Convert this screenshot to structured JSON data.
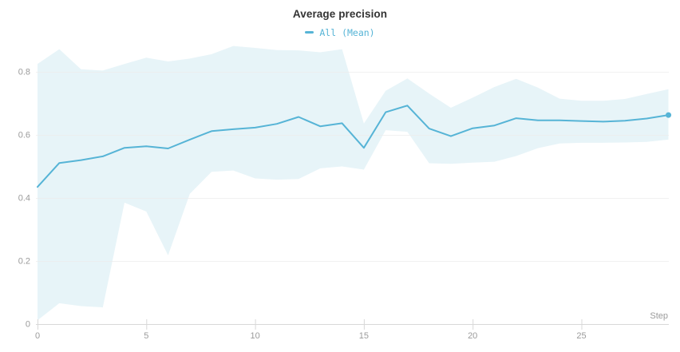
{
  "panel": {
    "title": "Average precision"
  },
  "legend": {
    "series_label": "All (Mean)"
  },
  "axis": {
    "x_label": "Step"
  },
  "colors": {
    "accent_line": "#56b4d6",
    "band_fill": "#e7f4f8",
    "title_text": "#333333",
    "axis_text": "#9b9b9b",
    "grid_line": "#ececec",
    "axis_line": "#d8d8d8"
  },
  "chart_data": {
    "type": "line",
    "title": "Average precision",
    "xlabel": "Step",
    "ylabel": "",
    "legend_position": "top-center",
    "grid": "horizontal",
    "xlim": [
      0,
      29.5
    ],
    "ylim": [
      0,
      0.89
    ],
    "x_ticks": [
      0,
      5,
      10,
      15,
      20,
      25
    ],
    "y_ticks": [
      0,
      0.2,
      0.4,
      0.6,
      0.8
    ],
    "x": [
      0,
      1,
      2,
      3,
      4,
      5,
      6,
      7,
      8,
      9,
      10,
      11,
      12,
      13,
      14,
      15,
      16,
      17,
      18,
      19,
      20,
      21,
      22,
      23,
      24,
      25,
      26,
      27,
      28,
      29
    ],
    "series": [
      {
        "name": "All (Mean)",
        "values": [
          0.435,
          0.511,
          0.52,
          0.532,
          0.559,
          0.564,
          0.557,
          0.585,
          0.612,
          0.618,
          0.623,
          0.635,
          0.657,
          0.627,
          0.637,
          0.559,
          0.672,
          0.693,
          0.62,
          0.596,
          0.621,
          0.63,
          0.653,
          0.646,
          0.646,
          0.644,
          0.642,
          0.645,
          0.652,
          0.663
        ],
        "band_upper": [
          0.825,
          0.872,
          0.808,
          0.804,
          0.825,
          0.845,
          0.833,
          0.842,
          0.856,
          0.882,
          0.876,
          0.869,
          0.868,
          0.862,
          0.872,
          0.636,
          0.74,
          0.779,
          0.731,
          0.686,
          0.718,
          0.752,
          0.778,
          0.75,
          0.715,
          0.708,
          0.708,
          0.714,
          0.73,
          0.745
        ],
        "band_lower": [
          0.012,
          0.066,
          0.057,
          0.053,
          0.385,
          0.357,
          0.218,
          0.413,
          0.483,
          0.487,
          0.462,
          0.458,
          0.46,
          0.494,
          0.5,
          0.49,
          0.615,
          0.61,
          0.51,
          0.508,
          0.512,
          0.515,
          0.533,
          0.558,
          0.573,
          0.575,
          0.575,
          0.576,
          0.578,
          0.585
        ],
        "last_point_marker": true
      }
    ]
  }
}
